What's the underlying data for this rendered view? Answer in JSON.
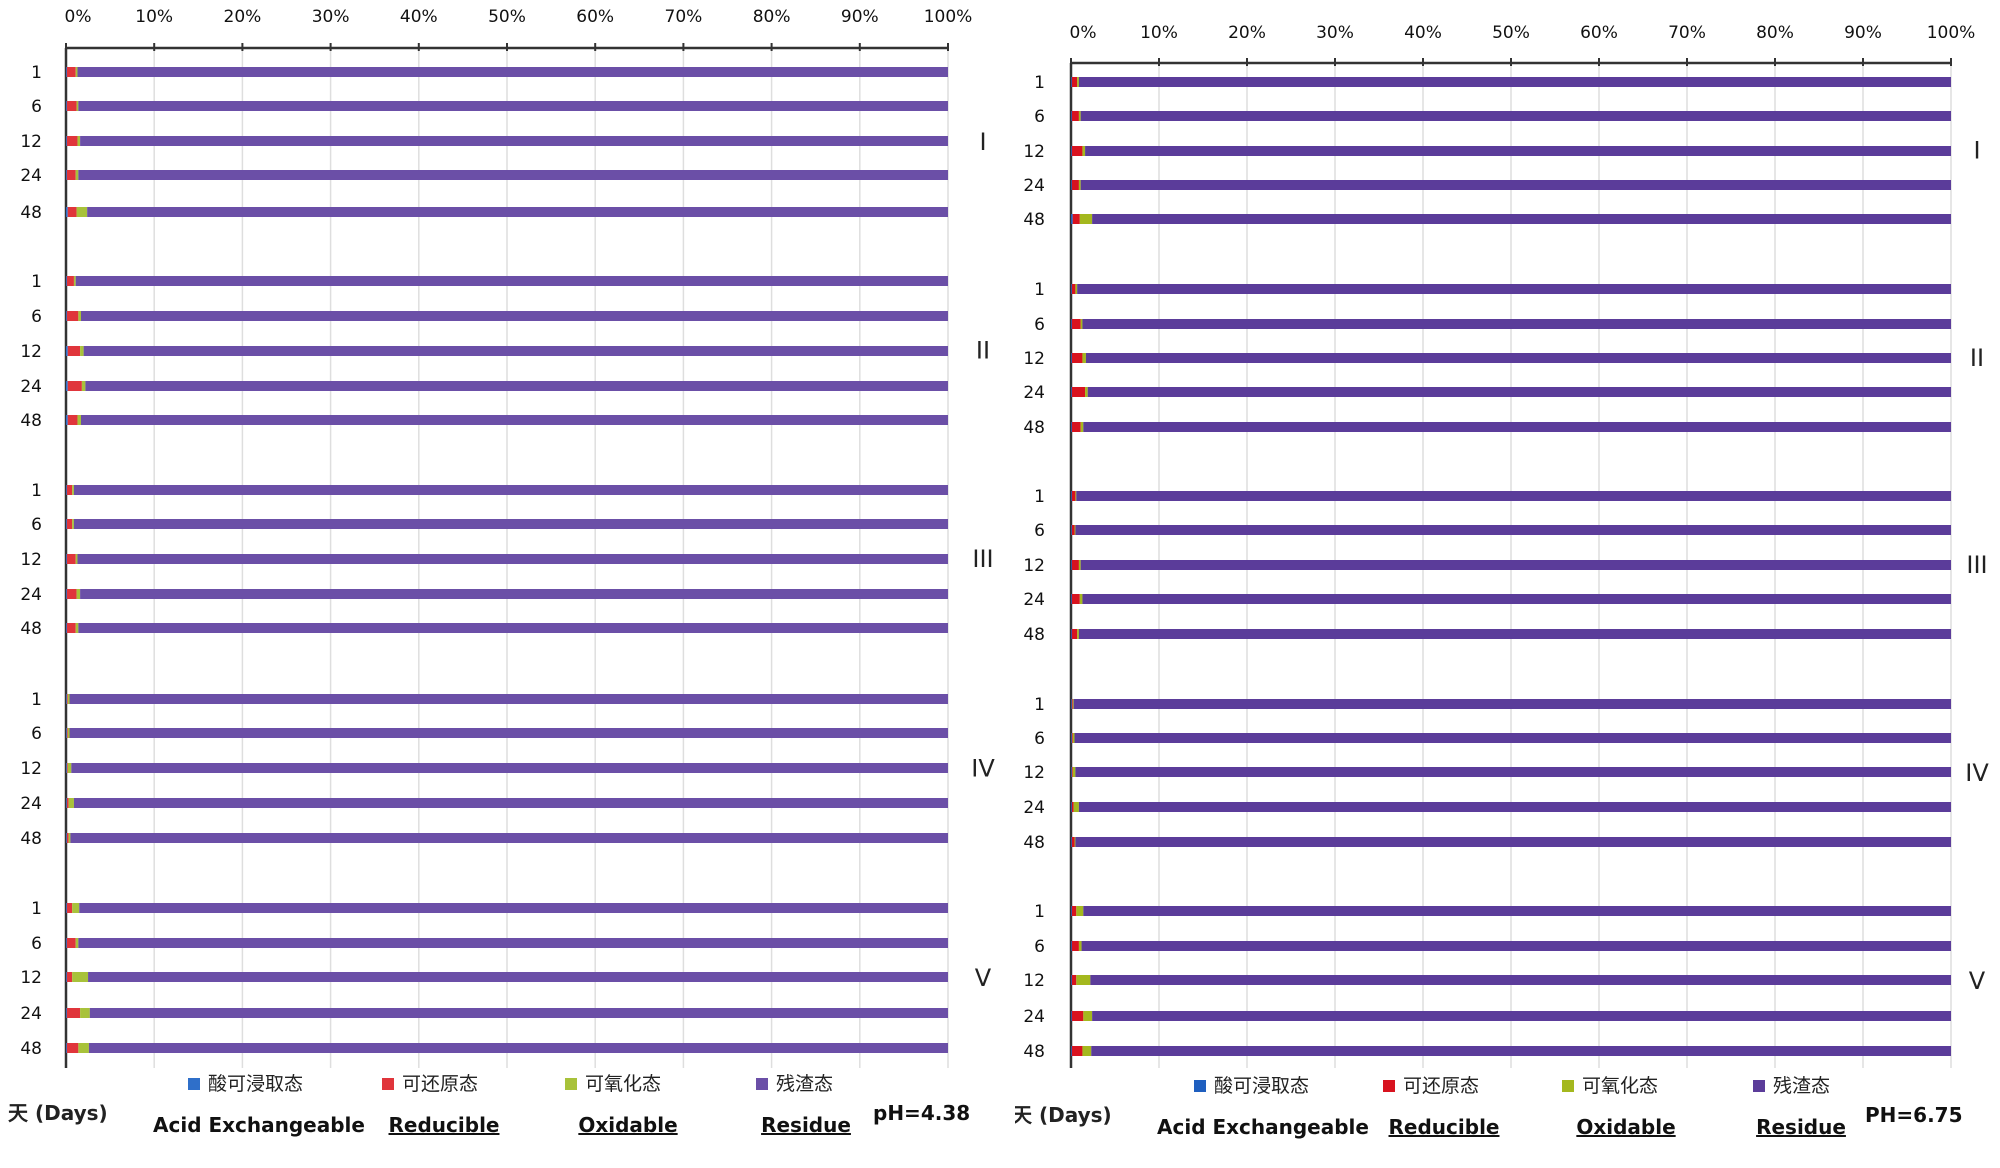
{
  "chart_data": [
    {
      "type": "bar",
      "orientation": "horizontal",
      "stacked": "percent",
      "ph_label": "pH=4.38",
      "xlabel": "天 (Days)",
      "xlim": [
        0,
        100
      ],
      "x_ticks": [
        "0%",
        "10%",
        "20%",
        "30%",
        "40%",
        "50%",
        "60%",
        "70%",
        "80%",
        "90%",
        "100%"
      ],
      "grid": true,
      "legend_position": "bottom",
      "colors": [
        "#2f6fc9",
        "#e0353b",
        "#a8c23a",
        "#6b4fa7"
      ],
      "legend": [
        {
          "zh": "酸可浸取态",
          "en": "Acid Exchangeable"
        },
        {
          "zh": "可还原态",
          "en": "Reducible"
        },
        {
          "zh": "可氧化态",
          "en": "Oxidable"
        },
        {
          "zh": "残渣态",
          "en": "Residue"
        }
      ],
      "series_names": [
        "Acid Exchangeable",
        "Reducible",
        "Oxidable",
        "Residue"
      ],
      "groups": [
        {
          "label": "I",
          "rows": [
            {
              "day": "1",
              "values": [
                0.1,
                1.0,
                0.2,
                98.7
              ]
            },
            {
              "day": "6",
              "values": [
                0.1,
                1.1,
                0.2,
                98.6
              ]
            },
            {
              "day": "12",
              "values": [
                0.1,
                1.2,
                0.3,
                98.4
              ]
            },
            {
              "day": "24",
              "values": [
                0.1,
                1.0,
                0.3,
                98.6
              ]
            },
            {
              "day": "48",
              "values": [
                0.2,
                1.0,
                1.2,
                97.6
              ]
            }
          ]
        },
        {
          "label": "II",
          "rows": [
            {
              "day": "1",
              "values": [
                0.1,
                0.8,
                0.2,
                98.9
              ]
            },
            {
              "day": "6",
              "values": [
                0.1,
                1.3,
                0.3,
                98.3
              ]
            },
            {
              "day": "12",
              "values": [
                0.2,
                1.4,
                0.4,
                98.0
              ]
            },
            {
              "day": "24",
              "values": [
                0.2,
                1.6,
                0.4,
                97.8
              ]
            },
            {
              "day": "48",
              "values": [
                0.2,
                1.1,
                0.4,
                98.3
              ]
            }
          ]
        },
        {
          "label": "III",
          "rows": [
            {
              "day": "1",
              "values": [
                0.1,
                0.6,
                0.2,
                99.1
              ]
            },
            {
              "day": "6",
              "values": [
                0.1,
                0.6,
                0.2,
                99.1
              ]
            },
            {
              "day": "12",
              "values": [
                0.1,
                1.0,
                0.2,
                98.7
              ]
            },
            {
              "day": "24",
              "values": [
                0.1,
                1.1,
                0.4,
                98.4
              ]
            },
            {
              "day": "48",
              "values": [
                0.1,
                1.0,
                0.3,
                98.6
              ]
            }
          ]
        },
        {
          "label": "IV",
          "rows": [
            {
              "day": "1",
              "values": [
                0.1,
                0.1,
                0.2,
                99.6
              ]
            },
            {
              "day": "6",
              "values": [
                0.1,
                0.1,
                0.2,
                99.6
              ]
            },
            {
              "day": "12",
              "values": [
                0.1,
                0.1,
                0.4,
                99.4
              ]
            },
            {
              "day": "24",
              "values": [
                0.1,
                0.2,
                0.6,
                99.1
              ]
            },
            {
              "day": "48",
              "values": [
                0.1,
                0.2,
                0.2,
                99.5
              ]
            }
          ]
        },
        {
          "label": "V",
          "rows": [
            {
              "day": "1",
              "values": [
                0.1,
                0.6,
                0.8,
                98.5
              ]
            },
            {
              "day": "6",
              "values": [
                0.1,
                1.0,
                0.3,
                98.6
              ]
            },
            {
              "day": "12",
              "values": [
                0.1,
                0.6,
                1.8,
                97.5
              ]
            },
            {
              "day": "24",
              "values": [
                0.1,
                1.5,
                1.1,
                97.3
              ]
            },
            {
              "day": "48",
              "values": [
                0.1,
                1.3,
                1.2,
                97.4
              ]
            }
          ]
        }
      ]
    },
    {
      "type": "bar",
      "orientation": "horizontal",
      "stacked": "percent",
      "ph_label": "PH=6.75",
      "xlabel": "天 (Days)",
      "xlim": [
        0,
        100
      ],
      "x_ticks": [
        "0%",
        "10%",
        "20%",
        "30%",
        "40%",
        "50%",
        "60%",
        "70%",
        "80%",
        "90%",
        "100%"
      ],
      "grid": true,
      "legend_position": "bottom",
      "colors": [
        "#1f5fbf",
        "#d8131f",
        "#a4b81e",
        "#5b3c9a"
      ],
      "legend": [
        {
          "zh": "酸可浸取态",
          "en": "Acid Exchangeable"
        },
        {
          "zh": "可还原态",
          "en": "Reducible"
        },
        {
          "zh": "可氧化态",
          "en": "Oxidable"
        },
        {
          "zh": "残渣态",
          "en": "Residue"
        }
      ],
      "series_names": [
        "Acid Exchangeable",
        "Reducible",
        "Oxidable",
        "Residue"
      ],
      "groups": [
        {
          "label": "I",
          "rows": [
            {
              "day": "1",
              "values": [
                0.1,
                0.6,
                0.2,
                99.1
              ]
            },
            {
              "day": "6",
              "values": [
                0.1,
                0.8,
                0.2,
                98.9
              ]
            },
            {
              "day": "12",
              "values": [
                0.1,
                1.2,
                0.3,
                98.4
              ]
            },
            {
              "day": "24",
              "values": [
                0.1,
                0.8,
                0.2,
                98.9
              ]
            },
            {
              "day": "48",
              "values": [
                0.2,
                0.8,
                1.4,
                97.6
              ]
            }
          ]
        },
        {
          "label": "II",
          "rows": [
            {
              "day": "1",
              "values": [
                0.1,
                0.4,
                0.2,
                99.3
              ]
            },
            {
              "day": "6",
              "values": [
                0.1,
                1.0,
                0.2,
                98.7
              ]
            },
            {
              "day": "12",
              "values": [
                0.1,
                1.2,
                0.4,
                98.3
              ]
            },
            {
              "day": "24",
              "values": [
                0.1,
                1.5,
                0.3,
                98.1
              ]
            },
            {
              "day": "48",
              "values": [
                0.1,
                1.0,
                0.3,
                98.6
              ]
            }
          ]
        },
        {
          "label": "III",
          "rows": [
            {
              "day": "1",
              "values": [
                0.1,
                0.4,
                0.1,
                99.4
              ]
            },
            {
              "day": "6",
              "values": [
                0.1,
                0.3,
                0.1,
                99.5
              ]
            },
            {
              "day": "12",
              "values": [
                0.1,
                0.8,
                0.2,
                98.9
              ]
            },
            {
              "day": "24",
              "values": [
                0.1,
                0.9,
                0.3,
                98.7
              ]
            },
            {
              "day": "48",
              "values": [
                0.1,
                0.6,
                0.2,
                99.1
              ]
            }
          ]
        },
        {
          "label": "IV",
          "rows": [
            {
              "day": "1",
              "values": [
                0.1,
                0.1,
                0.1,
                99.7
              ]
            },
            {
              "day": "6",
              "values": [
                0.1,
                0.1,
                0.2,
                99.6
              ]
            },
            {
              "day": "12",
              "values": [
                0.1,
                0.1,
                0.3,
                99.5
              ]
            },
            {
              "day": "24",
              "values": [
                0.1,
                0.2,
                0.6,
                99.1
              ]
            },
            {
              "day": "48",
              "values": [
                0.1,
                0.3,
                0.1,
                99.5
              ]
            }
          ]
        },
        {
          "label": "V",
          "rows": [
            {
              "day": "1",
              "values": [
                0.1,
                0.5,
                0.8,
                98.6
              ]
            },
            {
              "day": "6",
              "values": [
                0.1,
                0.8,
                0.3,
                98.8
              ]
            },
            {
              "day": "12",
              "values": [
                0.1,
                0.5,
                1.6,
                97.8
              ]
            },
            {
              "day": "24",
              "values": [
                0.1,
                1.3,
                1.0,
                97.6
              ]
            },
            {
              "day": "48",
              "values": [
                0.1,
                1.2,
                1.0,
                97.7
              ]
            }
          ]
        }
      ]
    }
  ]
}
